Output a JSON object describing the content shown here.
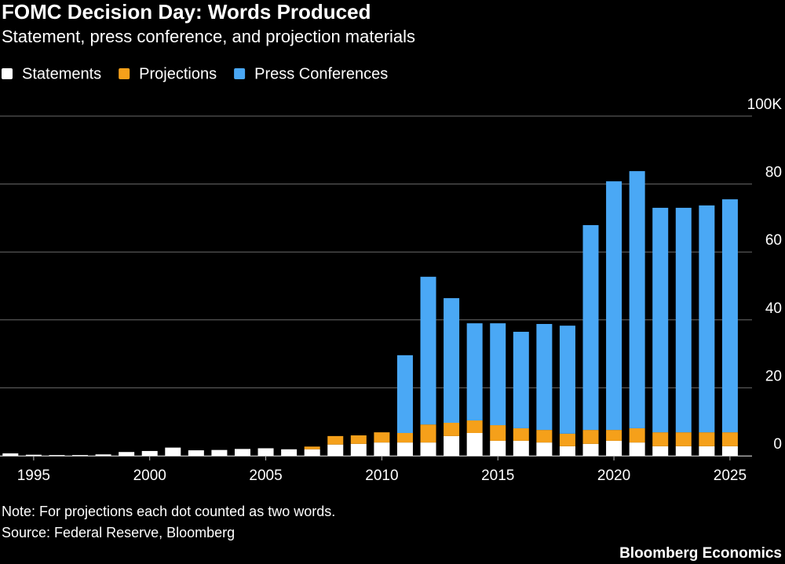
{
  "chart_data": {
    "type": "bar",
    "stacked": true,
    "title": "FOMC Decision Day: Words Produced",
    "subtitle": "Statement, press conference, and projection materials",
    "x": [
      1994,
      1995,
      1996,
      1997,
      1998,
      1999,
      2000,
      2001,
      2002,
      2003,
      2004,
      2005,
      2006,
      2007,
      2008,
      2009,
      2010,
      2011,
      2012,
      2013,
      2014,
      2015,
      2016,
      2017,
      2018,
      2019,
      2020,
      2021,
      2022,
      2023,
      2024,
      2025
    ],
    "series": [
      {
        "name": "Statements",
        "color": "#ffffff",
        "values": [
          0.7,
          0.3,
          0.2,
          0.2,
          0.4,
          1.1,
          1.4,
          2.4,
          1.6,
          1.7,
          2.0,
          2.2,
          1.9,
          1.9,
          3.3,
          3.5,
          3.9,
          3.9,
          3.9,
          5.8,
          6.7,
          4.4,
          4.4,
          3.9,
          2.8,
          3.5,
          4.4,
          3.9,
          2.8,
          2.8,
          2.8,
          2.8
        ]
      },
      {
        "name": "Projections",
        "color": "#f5a01a",
        "values": [
          0,
          0,
          0,
          0,
          0,
          0,
          0,
          0,
          0,
          0,
          0,
          0,
          0,
          0.8,
          2.5,
          2.5,
          3.0,
          2.8,
          5.3,
          3.9,
          3.7,
          4.6,
          3.7,
          3.7,
          3.7,
          4.1,
          3.2,
          4.2,
          4.1,
          4.1,
          4.1,
          4.1
        ]
      },
      {
        "name": "Press Conferences",
        "color": "#4aa8f5",
        "values": [
          0,
          0,
          0,
          0,
          0,
          0,
          0,
          0,
          0,
          0,
          0,
          0,
          0,
          0,
          0,
          0,
          0,
          22.9,
          43.5,
          36.7,
          28.6,
          30.0,
          28.4,
          31.2,
          31.8,
          60.3,
          73.2,
          75.7,
          66.1,
          66.1,
          66.8,
          68.6
        ]
      }
    ],
    "xlim": [
      1993.55,
      2025.95
    ],
    "xticks": [
      1995,
      2000,
      2005,
      2010,
      2015,
      2020,
      2025
    ],
    "ylim": [
      0,
      100
    ],
    "yticks": [
      0,
      20,
      40,
      60,
      80,
      {
        "value": 100,
        "label": "100K"
      }
    ],
    "grid": true,
    "note": "Note: For projections each dot counted as two words.",
    "source": "Source: Federal Reserve, Bloomberg",
    "brand": "Bloomberg Economics"
  }
}
